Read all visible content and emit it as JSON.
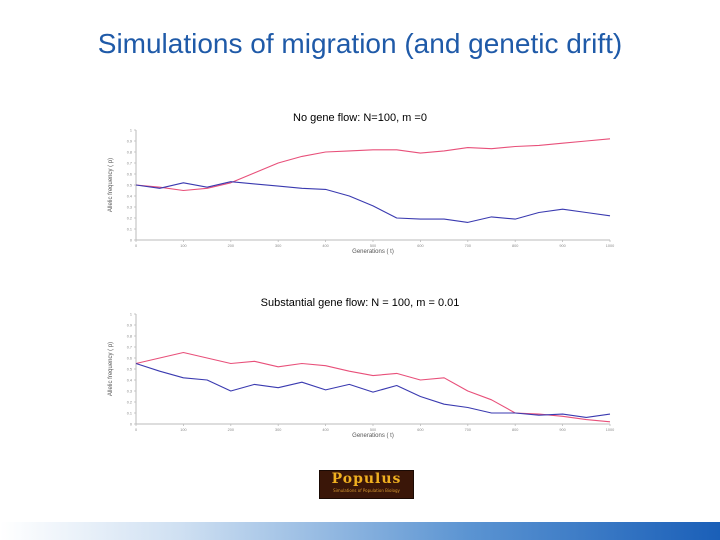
{
  "slide": {
    "title": "Simulations of migration (and genetic drift)"
  },
  "logo": {
    "word": "Populus",
    "subtitle": "Simulations of Population Biology"
  },
  "colors": {
    "series_pink": "#e8507a",
    "series_blue": "#3a3ab0",
    "title_blue": "#1f5aa8"
  },
  "chart_data": [
    {
      "type": "line",
      "title": "No gene flow: N=100, m =0",
      "xlabel": "Generations ( t)",
      "ylabel": "Allelic frequency ( p)",
      "xlim": [
        0,
        1000
      ],
      "ylim": [
        0,
        1
      ],
      "grid": false,
      "x_ticks": [
        0,
        100,
        200,
        300,
        400,
        500,
        600,
        700,
        800,
        900,
        1000
      ],
      "y_ticks": [
        0,
        0.1,
        0.2,
        0.3,
        0.4,
        0.5,
        0.6,
        0.7,
        0.8,
        0.9,
        1.0
      ],
      "series": [
        {
          "color": "#e8507a",
          "x": [
            0,
            50,
            100,
            150,
            200,
            250,
            300,
            350,
            400,
            450,
            500,
            550,
            600,
            650,
            700,
            750,
            800,
            850,
            900,
            950,
            1000
          ],
          "y": [
            0.5,
            0.48,
            0.45,
            0.47,
            0.52,
            0.61,
            0.7,
            0.76,
            0.8,
            0.81,
            0.82,
            0.82,
            0.79,
            0.81,
            0.84,
            0.83,
            0.85,
            0.86,
            0.88,
            0.9,
            0.92
          ]
        },
        {
          "color": "#3a3ab0",
          "x": [
            0,
            50,
            100,
            150,
            200,
            250,
            300,
            350,
            400,
            450,
            500,
            550,
            600,
            650,
            700,
            750,
            800,
            850,
            900,
            950,
            1000
          ],
          "y": [
            0.5,
            0.47,
            0.52,
            0.48,
            0.53,
            0.51,
            0.49,
            0.47,
            0.46,
            0.4,
            0.31,
            0.2,
            0.19,
            0.19,
            0.16,
            0.21,
            0.19,
            0.25,
            0.28,
            0.25,
            0.22
          ]
        }
      ]
    },
    {
      "type": "line",
      "title": "Substantial gene flow: N = 100, m = 0.01",
      "xlabel": "Generations ( t)",
      "ylabel": "Allelic frequency ( p)",
      "xlim": [
        0,
        1000
      ],
      "ylim": [
        0,
        1
      ],
      "grid": false,
      "x_ticks": [
        0,
        100,
        200,
        300,
        400,
        500,
        600,
        700,
        800,
        900,
        1000
      ],
      "y_ticks": [
        0,
        0.1,
        0.2,
        0.3,
        0.4,
        0.5,
        0.6,
        0.7,
        0.8,
        0.9,
        1.0
      ],
      "series": [
        {
          "color": "#e8507a",
          "x": [
            0,
            50,
            100,
            150,
            200,
            250,
            300,
            350,
            400,
            450,
            500,
            550,
            600,
            650,
            700,
            750,
            800,
            850,
            900,
            950,
            1000
          ],
          "y": [
            0.55,
            0.6,
            0.65,
            0.6,
            0.55,
            0.57,
            0.52,
            0.55,
            0.53,
            0.48,
            0.44,
            0.46,
            0.4,
            0.42,
            0.3,
            0.22,
            0.1,
            0.09,
            0.07,
            0.04,
            0.02
          ]
        },
        {
          "color": "#3a3ab0",
          "x": [
            0,
            50,
            100,
            150,
            200,
            250,
            300,
            350,
            400,
            450,
            500,
            550,
            600,
            650,
            700,
            750,
            800,
            850,
            900,
            950,
            1000
          ],
          "y": [
            0.55,
            0.48,
            0.42,
            0.4,
            0.3,
            0.36,
            0.33,
            0.38,
            0.31,
            0.36,
            0.29,
            0.35,
            0.25,
            0.18,
            0.15,
            0.1,
            0.1,
            0.08,
            0.09,
            0.06,
            0.09
          ]
        }
      ]
    }
  ]
}
